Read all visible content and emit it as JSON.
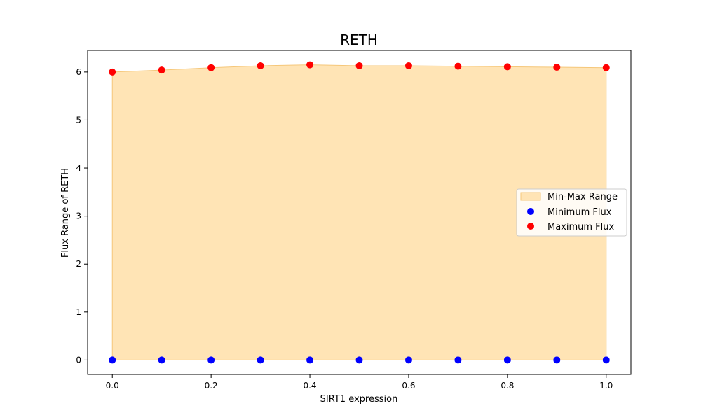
{
  "chart_data": {
    "type": "scatter",
    "title": "RETH",
    "xlabel": "SIRT1 expression",
    "ylabel": "Flux Range of RETH",
    "xlim": [
      -0.05,
      1.05
    ],
    "ylim": [
      -0.3,
      6.45
    ],
    "xticks": [
      "0.0",
      "0.2",
      "0.4",
      "0.6",
      "0.8",
      "1.0"
    ],
    "yticks": [
      "0",
      "1",
      "2",
      "3",
      "4",
      "5",
      "6"
    ],
    "grid": false,
    "legend_position": "center-right",
    "x": [
      0.0,
      0.1,
      0.2,
      0.3,
      0.4,
      0.5,
      0.6,
      0.7,
      0.8,
      0.9,
      1.0
    ],
    "series": [
      {
        "name": "Minimum Flux",
        "color": "#0000ff",
        "values": [
          0,
          0,
          0,
          0,
          0,
          0,
          0,
          0,
          0,
          0,
          0
        ]
      },
      {
        "name": "Maximum Flux",
        "color": "#ff0000",
        "values": [
          6.0,
          6.04,
          6.09,
          6.13,
          6.15,
          6.13,
          6.13,
          6.12,
          6.11,
          6.1,
          6.09
        ]
      }
    ],
    "fill": {
      "name": "Min-Max Range",
      "color": "#ffe4b5",
      "edge_color": "#f5c77a"
    }
  }
}
